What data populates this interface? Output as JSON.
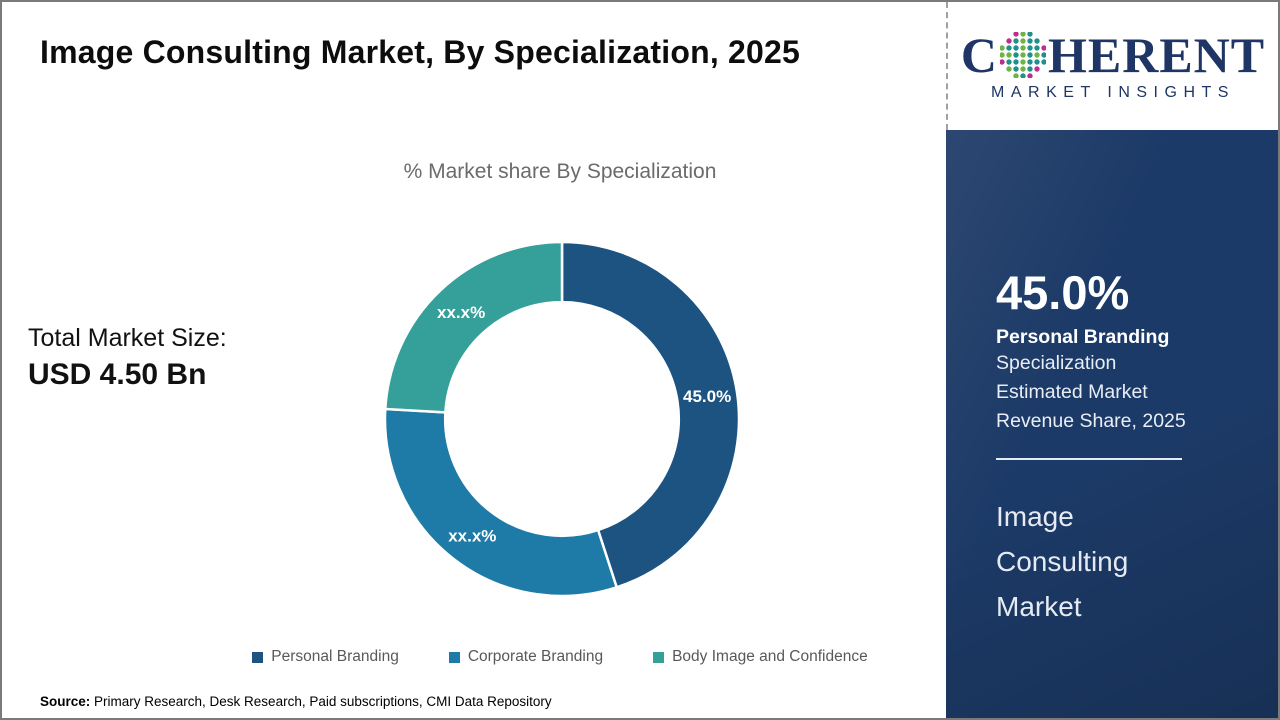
{
  "page": {
    "title": "Image Consulting Market, By Specialization, 2025"
  },
  "logo": {
    "brand_first_letter": "C",
    "brand_rest": "HERENT",
    "tagline": "MARKET INSIGHTS",
    "brand_color": "#1e3565",
    "globe_dot_colors": [
      "#6fb344",
      "#20908d",
      "#bf2e8e"
    ]
  },
  "left_panel": {
    "total_label": "Total Market Size:",
    "total_value": "USD 4.50 Bn"
  },
  "chart_data": {
    "type": "donut",
    "title": "% Market share By Specialization",
    "start_angle_deg": 0,
    "donut_hole_ratio": 0.66,
    "legend_position": "bottom",
    "series": [
      {
        "name": "Personal Branding",
        "value": 45.0,
        "label": "45.0%",
        "color": "#1d5380"
      },
      {
        "name": "Corporate Branding",
        "value": 30.9,
        "label": "xx.x%",
        "color": "#1e7aa6"
      },
      {
        "name": "Body Image and Confidence",
        "value": 24.1,
        "label": "xx.x%",
        "color": "#35a09a"
      }
    ]
  },
  "sidebar": {
    "background_color": "#1c3a67",
    "headline_value": "45.0%",
    "headline_bold": "Personal Branding",
    "headline_lines": [
      "Specialization",
      "Estimated Market",
      "Revenue Share, 2025"
    ],
    "market_name_lines": [
      "Image",
      "Consulting",
      "Market"
    ]
  },
  "footer": {
    "source_label": "Source:",
    "source_text": " Primary Research, Desk Research, Paid subscriptions, CMI Data Repository"
  }
}
